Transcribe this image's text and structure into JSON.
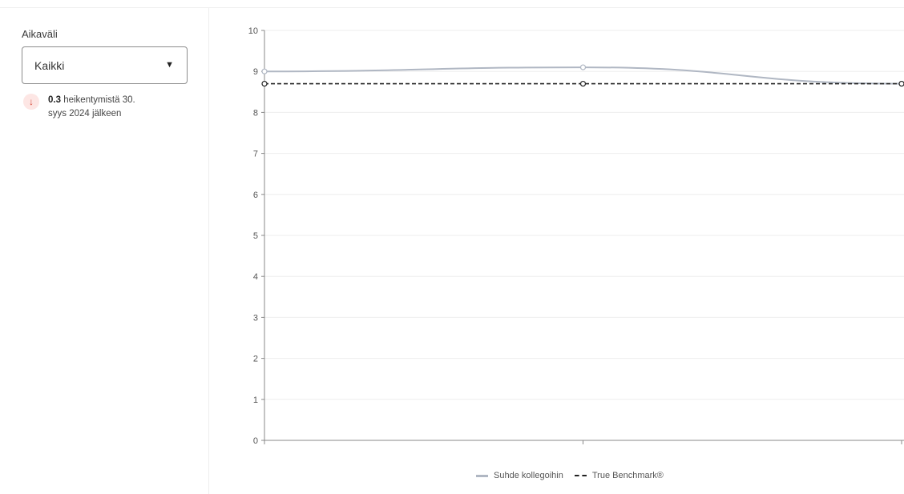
{
  "filter": {
    "label": "Aikaväli",
    "selected": "Kaikki",
    "caret_icon": "caret-down-icon"
  },
  "trend": {
    "icon": "arrow-down-icon",
    "value": "0.3",
    "text": "heikentymistä 30. syys 2024 jälkeen",
    "color": "#d64a3a"
  },
  "chart_data": {
    "type": "line",
    "ylim": [
      0,
      10
    ],
    "yticks": [
      0,
      1,
      2,
      3,
      4,
      5,
      6,
      7,
      8,
      9,
      10
    ],
    "x": [
      0,
      1,
      2
    ],
    "grid": true,
    "legend_placement": "bottom",
    "series": [
      {
        "name": "Suhde kollegoihin",
        "values": [
          9.0,
          9.1,
          8.7
        ],
        "color": "#b0b7c3",
        "style": "solid"
      },
      {
        "name": "True Benchmark®",
        "values": [
          8.7,
          8.7,
          8.7
        ],
        "color": "#222222",
        "style": "dashed"
      }
    ]
  }
}
